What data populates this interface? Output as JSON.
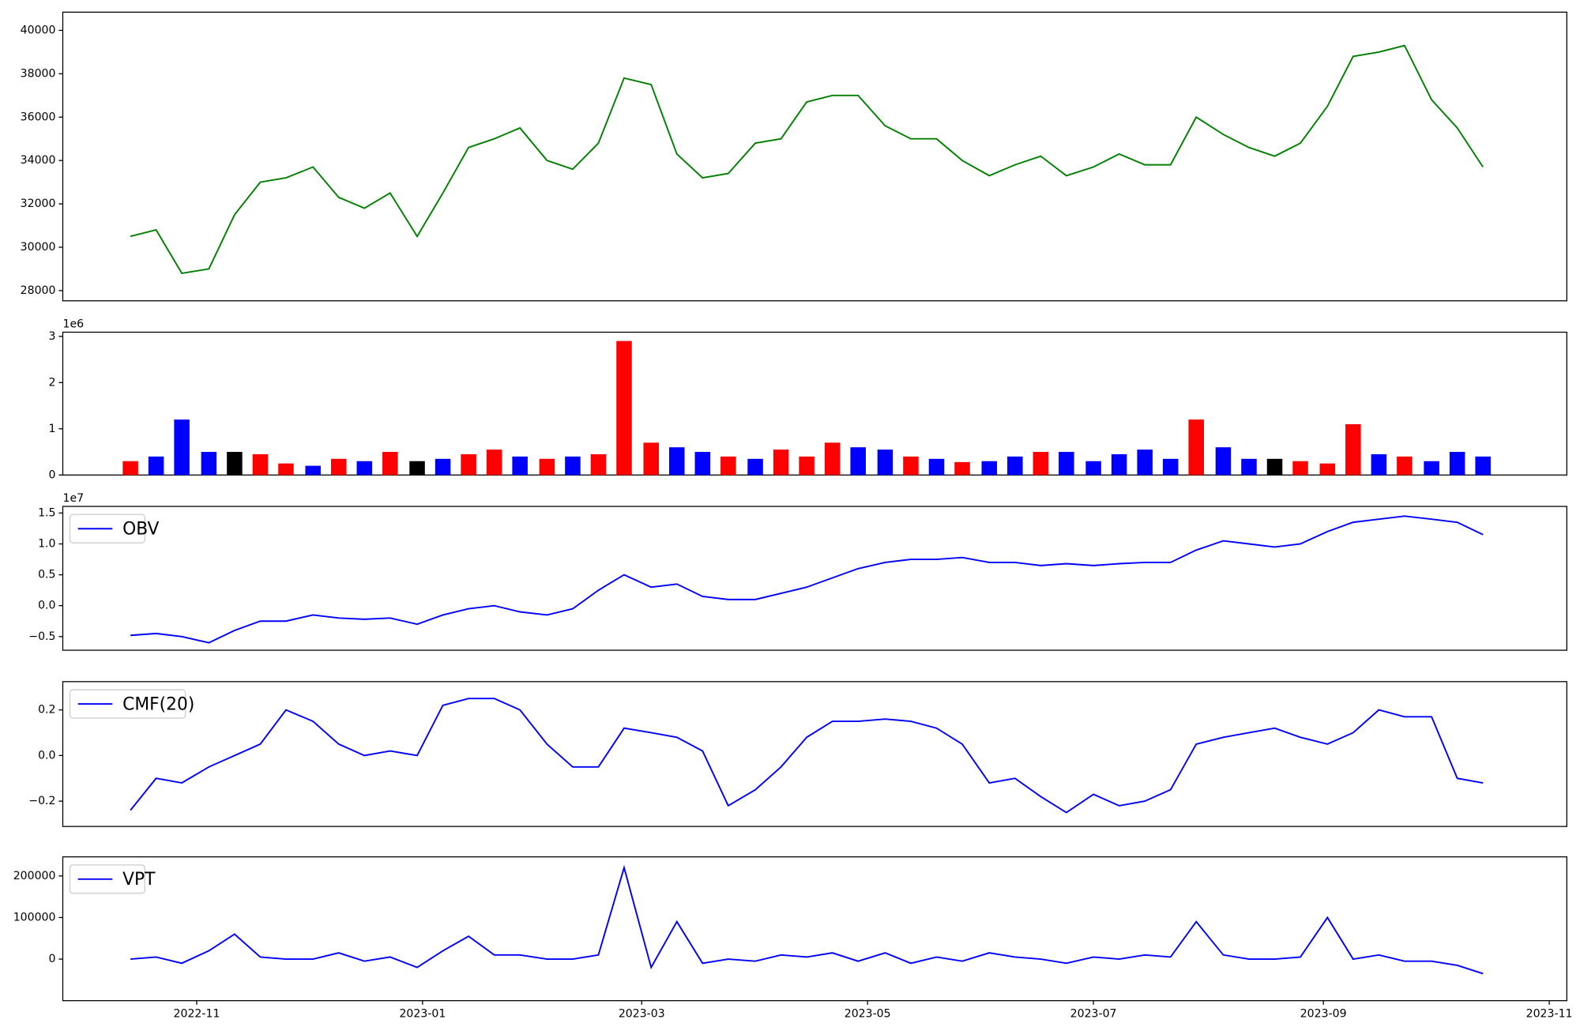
{
  "chart_data": [
    {
      "type": "line",
      "color": "#008000",
      "x": [
        2022.784,
        2022.803,
        2022.822,
        2022.842,
        2022.861,
        2022.88,
        2022.899,
        2022.919,
        2022.938,
        2022.957,
        2022.976,
        2022.996,
        2023.015,
        2023.034,
        2023.053,
        2023.072,
        2023.092,
        2023.111,
        2023.13,
        2023.149,
        2023.169,
        2023.188,
        2023.207,
        2023.226,
        2023.246,
        2023.265,
        2023.284,
        2023.303,
        2023.322,
        2023.342,
        2023.361,
        2023.38,
        2023.399,
        2023.419,
        2023.438,
        2023.457,
        2023.476,
        2023.496,
        2023.515,
        2023.534,
        2023.553,
        2023.572,
        2023.592,
        2023.611,
        2023.63,
        2023.649,
        2023.669,
        2023.688,
        2023.707,
        2023.726,
        2023.746,
        2023.765,
        2023.784
      ],
      "values": [
        30500,
        30800,
        28800,
        29000,
        31500,
        33000,
        33200,
        33700,
        32300,
        31800,
        32500,
        30500,
        32500,
        34600,
        35000,
        35500,
        34000,
        33600,
        34800,
        37800,
        37500,
        34300,
        33200,
        33400,
        34800,
        35000,
        36700,
        37000,
        37000,
        35600,
        35000,
        35000,
        34000,
        33300,
        33800,
        34200,
        33300,
        33700,
        34300,
        33800,
        33800,
        36000,
        35200,
        34600,
        34200,
        34800,
        36500,
        38800,
        39000,
        39300,
        36800,
        35500,
        33700
      ],
      "xlim": [
        2022.734,
        2023.846
      ],
      "ylim": [
        27530,
        40840
      ],
      "yticks": [
        28000,
        30000,
        32000,
        34000,
        36000,
        38000,
        40000
      ]
    },
    {
      "type": "bar",
      "offset_label": "1e6",
      "x": [
        2022.784,
        2022.803,
        2022.822,
        2022.842,
        2022.861,
        2022.88,
        2022.899,
        2022.919,
        2022.938,
        2022.957,
        2022.976,
        2022.996,
        2023.015,
        2023.034,
        2023.053,
        2023.072,
        2023.092,
        2023.111,
        2023.13,
        2023.149,
        2023.169,
        2023.188,
        2023.207,
        2023.226,
        2023.246,
        2023.265,
        2023.284,
        2023.303,
        2023.322,
        2023.342,
        2023.361,
        2023.38,
        2023.399,
        2023.419,
        2023.438,
        2023.457,
        2023.476,
        2023.496,
        2023.515,
        2023.534,
        2023.553,
        2023.572,
        2023.592,
        2023.611,
        2023.63,
        2023.649,
        2023.669,
        2023.688,
        2023.707,
        2023.726,
        2023.746,
        2023.765,
        2023.784
      ],
      "values": [
        0.3,
        0.4,
        1.2,
        0.5,
        0.5,
        0.45,
        0.25,
        0.2,
        0.35,
        0.3,
        0.5,
        0.3,
        0.35,
        0.45,
        0.55,
        0.4,
        0.35,
        0.4,
        0.45,
        2.9,
        0.7,
        0.6,
        0.5,
        0.4,
        0.35,
        0.55,
        0.4,
        0.7,
        0.6,
        0.55,
        0.4,
        0.35,
        0.28,
        0.3,
        0.4,
        0.5,
        0.5,
        0.3,
        0.45,
        0.55,
        0.35,
        1.2,
        0.6,
        0.35,
        0.35,
        0.3,
        0.25,
        1.1,
        0.45,
        0.4,
        0.3,
        0.5,
        0.4
      ],
      "colors": [
        "#ff0000",
        "#0000ff",
        "#0000ff",
        "#0000ff",
        "#000000",
        "#ff0000",
        "#ff0000",
        "#0000ff",
        "#ff0000",
        "#0000ff",
        "#ff0000",
        "#000000",
        "#0000ff",
        "#ff0000",
        "#ff0000",
        "#0000ff",
        "#ff0000",
        "#0000ff",
        "#ff0000",
        "#ff0000",
        "#ff0000",
        "#0000ff",
        "#0000ff",
        "#ff0000",
        "#0000ff",
        "#ff0000",
        "#ff0000",
        "#ff0000",
        "#0000ff",
        "#0000ff",
        "#ff0000",
        "#0000ff",
        "#ff0000",
        "#0000ff",
        "#0000ff",
        "#ff0000",
        "#0000ff",
        "#0000ff",
        "#0000ff",
        "#0000ff",
        "#0000ff",
        "#ff0000",
        "#0000ff",
        "#0000ff",
        "#000000",
        "#ff0000",
        "#ff0000",
        "#ff0000",
        "#0000ff",
        "#ff0000",
        "#0000ff",
        "#0000ff",
        "#0000ff"
      ],
      "xlim": [
        2022.734,
        2023.846
      ],
      "ylim": [
        0,
        3.09
      ],
      "yticks": [
        0,
        1,
        2,
        3
      ]
    },
    {
      "type": "line",
      "offset_label": "1e7",
      "legend": "upper left",
      "x": [
        2022.784,
        2022.803,
        2022.822,
        2022.842,
        2022.861,
        2022.88,
        2022.899,
        2022.919,
        2022.938,
        2022.957,
        2022.976,
        2022.996,
        2023.015,
        2023.034,
        2023.053,
        2023.072,
        2023.092,
        2023.111,
        2023.13,
        2023.149,
        2023.169,
        2023.188,
        2023.207,
        2023.226,
        2023.246,
        2023.265,
        2023.284,
        2023.303,
        2023.322,
        2023.342,
        2023.361,
        2023.38,
        2023.399,
        2023.419,
        2023.438,
        2023.457,
        2023.476,
        2023.496,
        2023.515,
        2023.534,
        2023.553,
        2023.572,
        2023.592,
        2023.611,
        2023.63,
        2023.649,
        2023.669,
        2023.688,
        2023.707,
        2023.726,
        2023.746,
        2023.765,
        2023.784
      ],
      "series": [
        {
          "name": "OBV",
          "color": "#0000ff",
          "values": [
            -0.48,
            -0.45,
            -0.5,
            -0.6,
            -0.4,
            -0.25,
            -0.25,
            -0.15,
            -0.2,
            -0.22,
            -0.2,
            -0.3,
            -0.15,
            -0.05,
            0.0,
            -0.1,
            -0.15,
            -0.05,
            0.25,
            0.5,
            0.3,
            0.35,
            0.15,
            0.1,
            0.1,
            0.2,
            0.3,
            0.45,
            0.6,
            0.7,
            0.75,
            0.75,
            0.78,
            0.7,
            0.7,
            0.65,
            0.68,
            0.65,
            0.68,
            0.7,
            0.7,
            0.9,
            1.05,
            1.0,
            0.95,
            1.0,
            1.2,
            1.35,
            1.4,
            1.45,
            1.4,
            1.35,
            1.15
          ]
        }
      ],
      "xlim": [
        2022.734,
        2023.846
      ],
      "ylim": [
        -0.721,
        1.607
      ],
      "yticks": [
        {
          "value": -0.5,
          "label": "−0.5"
        },
        {
          "value": 0,
          "label": "0.0"
        },
        0.5,
        {
          "value": 1,
          "label": "1.0"
        },
        1.5
      ]
    },
    {
      "type": "line",
      "legend": "upper left",
      "x": [
        2022.784,
        2022.803,
        2022.822,
        2022.842,
        2022.861,
        2022.88,
        2022.899,
        2022.919,
        2022.938,
        2022.957,
        2022.976,
        2022.996,
        2023.015,
        2023.034,
        2023.053,
        2023.072,
        2023.092,
        2023.111,
        2023.13,
        2023.149,
        2023.169,
        2023.188,
        2023.207,
        2023.226,
        2023.246,
        2023.265,
        2023.284,
        2023.303,
        2023.322,
        2023.342,
        2023.361,
        2023.38,
        2023.399,
        2023.419,
        2023.438,
        2023.457,
        2023.476,
        2023.496,
        2023.515,
        2023.534,
        2023.553,
        2023.572,
        2023.592,
        2023.611,
        2023.63,
        2023.649,
        2023.669,
        2023.688,
        2023.707,
        2023.726,
        2023.746,
        2023.765,
        2023.784
      ],
      "series": [
        {
          "name": "CMF(20)",
          "color": "#0000ff",
          "values": [
            -0.24,
            -0.1,
            -0.12,
            -0.05,
            0.0,
            0.05,
            0.2,
            0.15,
            0.05,
            0.0,
            0.02,
            0.0,
            0.22,
            0.25,
            0.25,
            0.2,
            0.05,
            -0.05,
            -0.05,
            0.12,
            0.1,
            0.08,
            0.02,
            -0.22,
            -0.15,
            -0.05,
            0.08,
            0.15,
            0.15,
            0.16,
            0.15,
            0.12,
            0.05,
            -0.12,
            -0.1,
            -0.18,
            -0.25,
            -0.17,
            -0.22,
            -0.2,
            -0.15,
            0.05,
            0.08,
            0.1,
            0.12,
            0.08,
            0.05,
            0.1,
            0.2,
            0.17,
            0.17,
            -0.1,
            -0.12
          ]
        }
      ],
      "xlim": [
        2022.734,
        2023.846
      ],
      "ylim": [
        -0.311,
        0.324
      ],
      "yticks": [
        {
          "value": -0.2,
          "label": "−0.2"
        },
        {
          "value": 0,
          "label": "0.0"
        },
        0.2
      ]
    },
    {
      "type": "line",
      "legend": "upper left",
      "x": [
        2022.784,
        2022.803,
        2022.822,
        2022.842,
        2022.861,
        2022.88,
        2022.899,
        2022.919,
        2022.938,
        2022.957,
        2022.976,
        2022.996,
        2023.015,
        2023.034,
        2023.053,
        2023.072,
        2023.092,
        2023.111,
        2023.13,
        2023.149,
        2023.169,
        2023.188,
        2023.207,
        2023.226,
        2023.246,
        2023.265,
        2023.284,
        2023.303,
        2023.322,
        2023.342,
        2023.361,
        2023.38,
        2023.399,
        2023.419,
        2023.438,
        2023.457,
        2023.476,
        2023.496,
        2023.515,
        2023.534,
        2023.553,
        2023.572,
        2023.592,
        2023.611,
        2023.63,
        2023.649,
        2023.669,
        2023.688,
        2023.707,
        2023.726,
        2023.746,
        2023.765,
        2023.784
      ],
      "series": [
        {
          "name": "VPT",
          "color": "#0000ff",
          "values": [
            0,
            5000,
            -10000,
            20000,
            60000,
            5000,
            0,
            0,
            15000,
            -5000,
            5000,
            -20000,
            20000,
            55000,
            10000,
            10000,
            0,
            0,
            10000,
            220000,
            -20000,
            90000,
            -10000,
            0,
            -5000,
            10000,
            5000,
            15000,
            -5000,
            15000,
            -10000,
            5000,
            -5000,
            15000,
            5000,
            0,
            -10000,
            5000,
            0,
            10000,
            5000,
            90000,
            10000,
            0,
            0,
            5000,
            100000,
            0,
            10000,
            -5000,
            -5000,
            -15000,
            -35000
          ]
        }
      ],
      "xlim": [
        2022.734,
        2023.846
      ],
      "ylim": [
        -100000,
        246000
      ],
      "yticks": [
        0,
        100000,
        200000
      ],
      "xticks": [
        {
          "value": 2022.833,
          "label": "2022-11"
        },
        {
          "value": 2023.0,
          "label": "2023-01"
        },
        {
          "value": 2023.162,
          "label": "2023-03"
        },
        {
          "value": 2023.329,
          "label": "2023-05"
        },
        {
          "value": 2023.496,
          "label": "2023-07"
        },
        {
          "value": 2023.666,
          "label": "2023-09"
        },
        {
          "value": 2023.833,
          "label": "2023-11"
        }
      ]
    }
  ]
}
